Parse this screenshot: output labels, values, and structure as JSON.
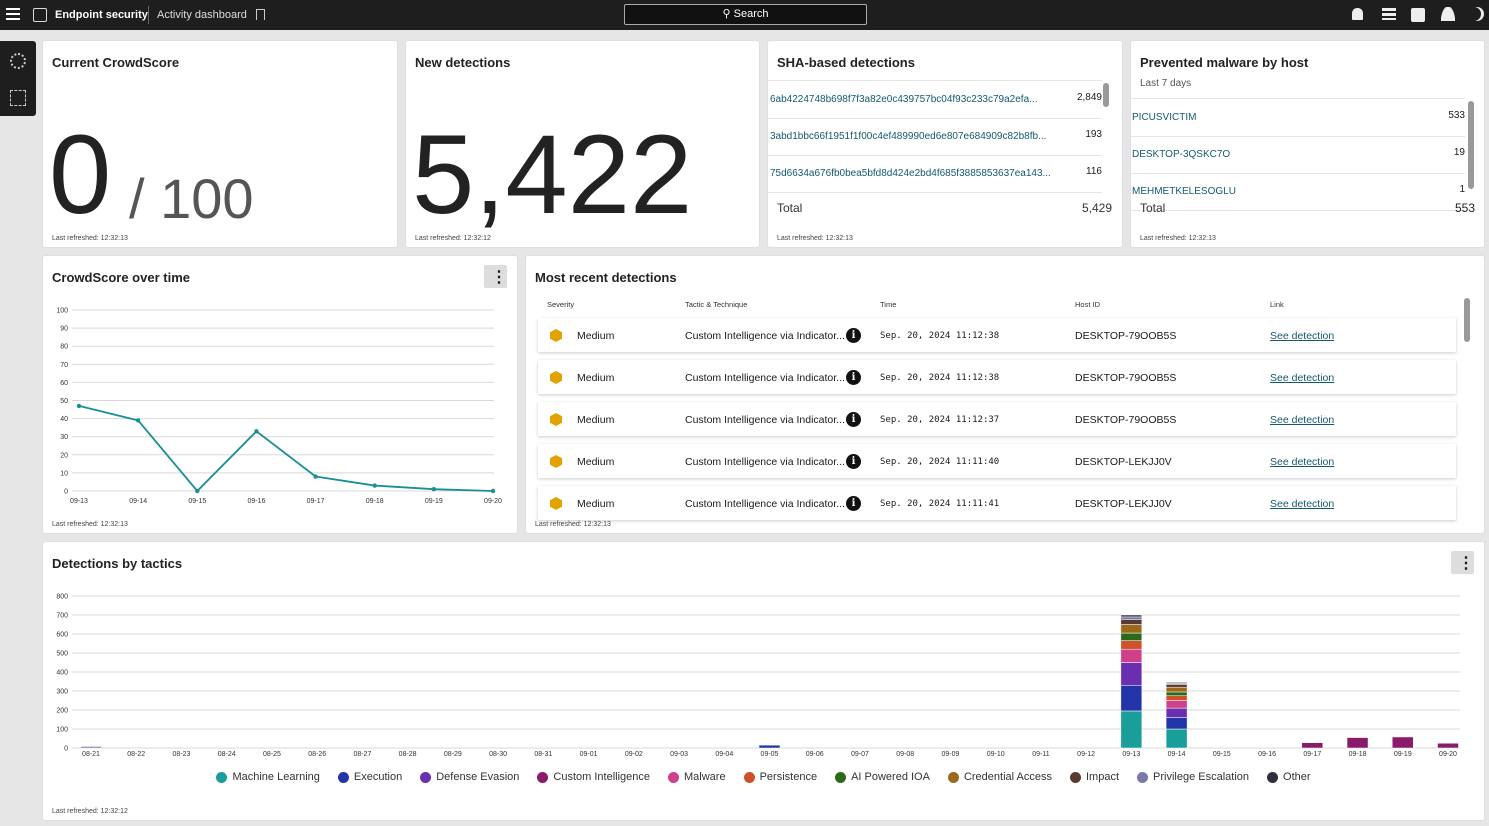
{
  "header": {
    "product": "Endpoint security",
    "page": "Activity dashboard",
    "search": "Search"
  },
  "crowdscore": {
    "title": "Current CrowdScore",
    "value": "0",
    "max": "/ 100",
    "refreshed": "Last refreshed: 12:32:13"
  },
  "new_detections": {
    "title": "New detections",
    "value": "5,422",
    "refreshed": "Last refreshed: 12:32:12"
  },
  "sha_detections": {
    "title": "SHA-based detections",
    "rows": [
      {
        "hash": "6ab4224748b698f7f3a82e0c439757bc04f93c233c79a2efa...",
        "count": "2,849"
      },
      {
        "hash": "3abd1bbc66f1951f1f00c4ef489990ed6e807e684909c82b8fb...",
        "count": "193"
      },
      {
        "hash": "75d6634a676fb0bea5bfd8d424e2bd4f685f3885853637ea143...",
        "count": "116"
      }
    ],
    "total_label": "Total",
    "total": "5,429",
    "refreshed": "Last refreshed: 12:32:13"
  },
  "prevented_malware": {
    "title": "Prevented malware by host",
    "subtitle": "Last 7 days",
    "rows": [
      {
        "host": "PICUSVICTIM",
        "count": "533"
      },
      {
        "host": "DESKTOP-3QSKC7O",
        "count": "19"
      },
      {
        "host": "MEHMETKELESOGLU",
        "count": "1"
      }
    ],
    "total_label": "Total",
    "total": "553",
    "refreshed": "Last refreshed: 12:32:13"
  },
  "recent_detections": {
    "title": "Most recent detections",
    "columns": [
      "Severity",
      "Tactic & Technique",
      "Time",
      "Host ID",
      "Link"
    ],
    "rows": [
      {
        "severity": "Medium",
        "tactic": "Custom Intelligence via Indicator...",
        "time": "Sep. 20, 2024 11:12:38",
        "host": "DESKTOP-79OOB5S",
        "link": "See detection"
      },
      {
        "severity": "Medium",
        "tactic": "Custom Intelligence via Indicator...",
        "time": "Sep. 20, 2024 11:12:38",
        "host": "DESKTOP-79OOB5S",
        "link": "See detection"
      },
      {
        "severity": "Medium",
        "tactic": "Custom Intelligence via Indicator...",
        "time": "Sep. 20, 2024 11:12:37",
        "host": "DESKTOP-79OOB5S",
        "link": "See detection"
      },
      {
        "severity": "Medium",
        "tactic": "Custom Intelligence via Indicator...",
        "time": "Sep. 20, 2024 11:11:40",
        "host": "DESKTOP-LEKJJ0V",
        "link": "See detection"
      },
      {
        "severity": "Medium",
        "tactic": "Custom Intelligence via Indicator...",
        "time": "Sep. 20, 2024 11:11:41",
        "host": "DESKTOP-LEKJJ0V",
        "link": "See detection"
      }
    ],
    "refreshed": "Last refreshed: 12:32:13"
  },
  "crowdscore_chart": {
    "type": "line",
    "title": "CrowdScore over time",
    "categories": [
      "09-13",
      "09-14",
      "09-15",
      "09-16",
      "09-17",
      "09-18",
      "09-19",
      "09-20"
    ],
    "values": [
      47,
      39,
      0,
      33,
      8,
      3,
      1,
      0
    ],
    "color": "#1a8f96",
    "ylim": [
      0,
      100
    ],
    "yticks": [
      0,
      10,
      20,
      30,
      40,
      50,
      60,
      70,
      80,
      90,
      100
    ],
    "grid": true,
    "refreshed": "Last refreshed: 12:32:13"
  },
  "tactics_chart": {
    "type": "bar",
    "stacked": true,
    "title": "Detections by tactics",
    "legend": "bottom",
    "ylim": [
      0,
      800
    ],
    "yticks": [
      0,
      100,
      200,
      300,
      400,
      500,
      600,
      700,
      800
    ],
    "grid": true,
    "refreshed": "Last refreshed: 12:32:12",
    "categories": [
      "08-21",
      "08-22",
      "08-23",
      "08-24",
      "08-25",
      "08-26",
      "08-27",
      "08-28",
      "08-29",
      "08-30",
      "08-31",
      "09-01",
      "09-02",
      "09-03",
      "09-04",
      "09-05",
      "09-06",
      "09-07",
      "09-08",
      "09-09",
      "09-10",
      "09-11",
      "09-12",
      "09-13",
      "09-14",
      "09-15",
      "09-16",
      "09-17",
      "09-18",
      "09-19",
      "09-20"
    ],
    "series": [
      {
        "name": "Machine Learning",
        "color": "#1a9e9a",
        "values": [
          0,
          0,
          0,
          0,
          0,
          0,
          0,
          0,
          0,
          0,
          0,
          0,
          0,
          0,
          0,
          0,
          0,
          0,
          0,
          0,
          0,
          0,
          0,
          195,
          100,
          0,
          0,
          0,
          0,
          0,
          0
        ]
      },
      {
        "name": "Execution",
        "color": "#2234a8",
        "values": [
          0,
          0,
          0,
          0,
          0,
          0,
          0,
          0,
          0,
          0,
          0,
          0,
          0,
          0,
          0,
          15,
          0,
          0,
          0,
          0,
          0,
          0,
          0,
          135,
          60,
          0,
          0,
          0,
          0,
          0,
          0
        ]
      },
      {
        "name": "Defense Evasion",
        "color": "#6a2fb0",
        "values": [
          0,
          0,
          0,
          0,
          0,
          0,
          0,
          0,
          0,
          0,
          0,
          0,
          0,
          0,
          0,
          0,
          0,
          0,
          0,
          0,
          0,
          0,
          0,
          120,
          50,
          0,
          0,
          0,
          0,
          0,
          0
        ]
      },
      {
        "name": "Custom Intelligence",
        "color": "#8a1a6a",
        "values": [
          0,
          0,
          0,
          0,
          0,
          0,
          0,
          0,
          0,
          0,
          0,
          0,
          0,
          0,
          0,
          0,
          0,
          0,
          0,
          0,
          0,
          0,
          0,
          0,
          0,
          0,
          0,
          28,
          55,
          58,
          25
        ]
      },
      {
        "name": "Malware",
        "color": "#d0408a",
        "values": [
          0,
          0,
          0,
          0,
          0,
          0,
          0,
          0,
          0,
          0,
          0,
          0,
          0,
          0,
          0,
          0,
          0,
          0,
          0,
          0,
          0,
          0,
          0,
          70,
          40,
          0,
          0,
          0,
          0,
          0,
          0
        ]
      },
      {
        "name": "Persistence",
        "color": "#d0502a",
        "values": [
          0,
          0,
          0,
          0,
          0,
          0,
          0,
          0,
          0,
          0,
          0,
          0,
          0,
          0,
          0,
          0,
          0,
          0,
          0,
          0,
          0,
          0,
          0,
          45,
          25,
          0,
          0,
          0,
          0,
          0,
          0
        ]
      },
      {
        "name": "AI Powered IOA",
        "color": "#2a6a1a",
        "values": [
          0,
          0,
          0,
          0,
          0,
          0,
          0,
          0,
          0,
          0,
          0,
          0,
          0,
          0,
          0,
          0,
          0,
          0,
          0,
          0,
          0,
          0,
          0,
          40,
          20,
          0,
          0,
          0,
          0,
          0,
          0
        ]
      },
      {
        "name": "Credential Access",
        "color": "#9a6a1a",
        "values": [
          0,
          0,
          0,
          0,
          0,
          0,
          0,
          0,
          0,
          0,
          0,
          0,
          0,
          0,
          0,
          0,
          0,
          0,
          0,
          0,
          0,
          0,
          0,
          45,
          25,
          0,
          0,
          0,
          0,
          0,
          0
        ]
      },
      {
        "name": "Impact",
        "color": "#5a3a30",
        "values": [
          0,
          0,
          0,
          0,
          0,
          0,
          0,
          0,
          0,
          0,
          0,
          0,
          0,
          0,
          0,
          0,
          0,
          0,
          0,
          0,
          0,
          0,
          0,
          25,
          15,
          0,
          0,
          0,
          0,
          0,
          0
        ]
      },
      {
        "name": "Privilege Escalation",
        "color": "#7a7aaa",
        "values": [
          8,
          0,
          0,
          0,
          0,
          0,
          0,
          0,
          0,
          0,
          0,
          0,
          0,
          0,
          0,
          0,
          0,
          0,
          0,
          0,
          0,
          0,
          0,
          15,
          5,
          0,
          0,
          0,
          0,
          0,
          0
        ]
      },
      {
        "name": "Other",
        "color": "#303040",
        "values": [
          0,
          0,
          0,
          0,
          0,
          0,
          0,
          0,
          0,
          0,
          0,
          0,
          0,
          0,
          0,
          0,
          0,
          0,
          0,
          0,
          0,
          0,
          0,
          10,
          5,
          0,
          0,
          0,
          0,
          0,
          0
        ]
      }
    ]
  }
}
